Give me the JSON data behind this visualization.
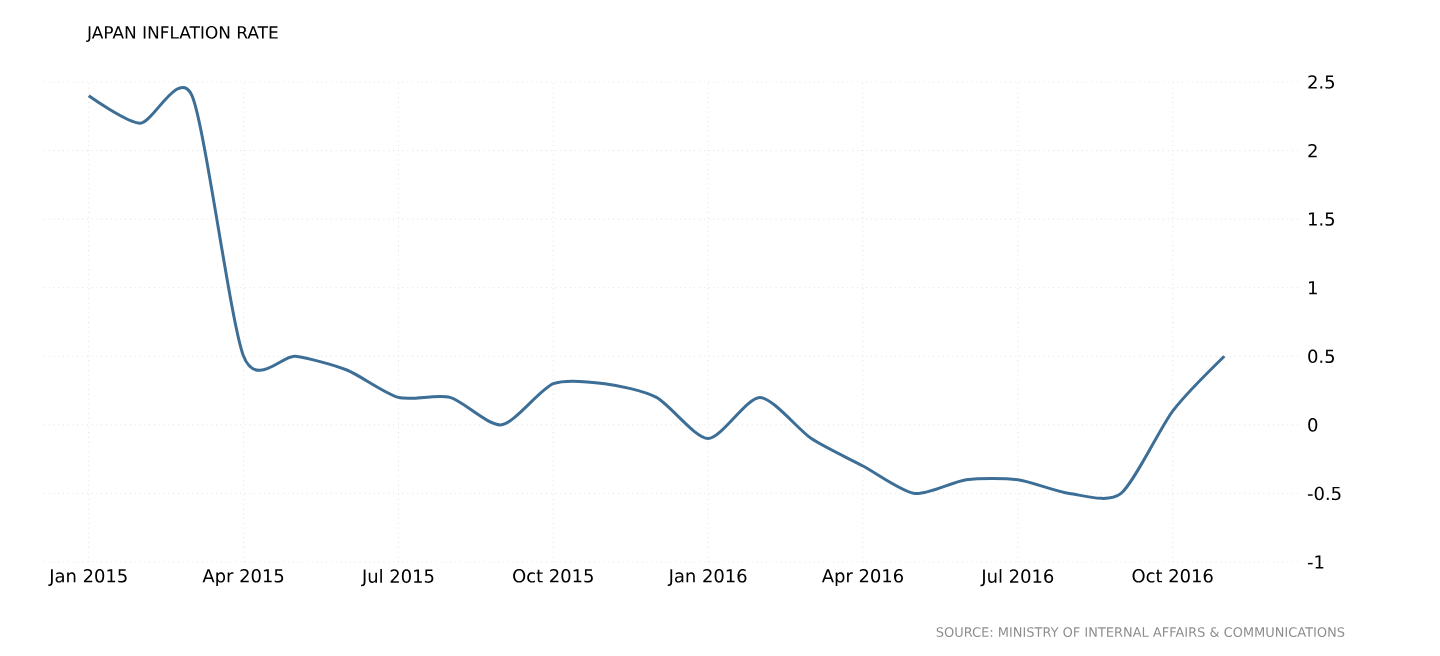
{
  "chart_data": {
    "type": "line",
    "title": "JAPAN INFLATION RATE",
    "annotations": [
      "SOURCE: MINISTRY OF INTERNAL AFFAIRS & COMMUNICATIONS"
    ],
    "x": [
      "2015-01",
      "2015-02",
      "2015-03",
      "2015-04",
      "2015-05",
      "2015-06",
      "2015-07",
      "2015-08",
      "2015-09",
      "2015-10",
      "2015-11",
      "2015-12",
      "2016-01",
      "2016-02",
      "2016-03",
      "2016-04",
      "2016-05",
      "2016-06",
      "2016-07",
      "2016-08",
      "2016-09",
      "2016-10",
      "2016-11"
    ],
    "series": [
      {
        "color": "#3d6e96",
        "values": [
          2.4,
          2.2,
          2.4,
          0.5,
          0.5,
          0.4,
          0.2,
          0.2,
          0.0,
          0.3,
          0.3,
          0.2,
          -0.1,
          0.2,
          -0.1,
          -0.3,
          -0.5,
          -0.4,
          -0.4,
          -0.5,
          -0.5,
          0.1,
          0.5
        ]
      }
    ],
    "xlim": [
      "2014-12-05",
      "2016-12-15"
    ],
    "xticks": [
      {
        "value": "2015-01",
        "label": "Jan 2015"
      },
      {
        "value": "2015-04",
        "label": "Apr 2015"
      },
      {
        "value": "2015-07",
        "label": "Jul 2015"
      },
      {
        "value": "2015-10",
        "label": "Oct 2015"
      },
      {
        "value": "2016-01",
        "label": "Jan 2016"
      },
      {
        "value": "2016-04",
        "label": "Apr 2016"
      },
      {
        "value": "2016-07",
        "label": "Jul 2016"
      },
      {
        "value": "2016-10",
        "label": "Oct 2016"
      }
    ],
    "ylim": [
      -1,
      2.5
    ],
    "yticks": [
      -1,
      -0.5,
      0,
      0.5,
      1,
      1.5,
      2,
      2.5
    ],
    "grid": true,
    "marker": "none",
    "line_style": "solid"
  }
}
